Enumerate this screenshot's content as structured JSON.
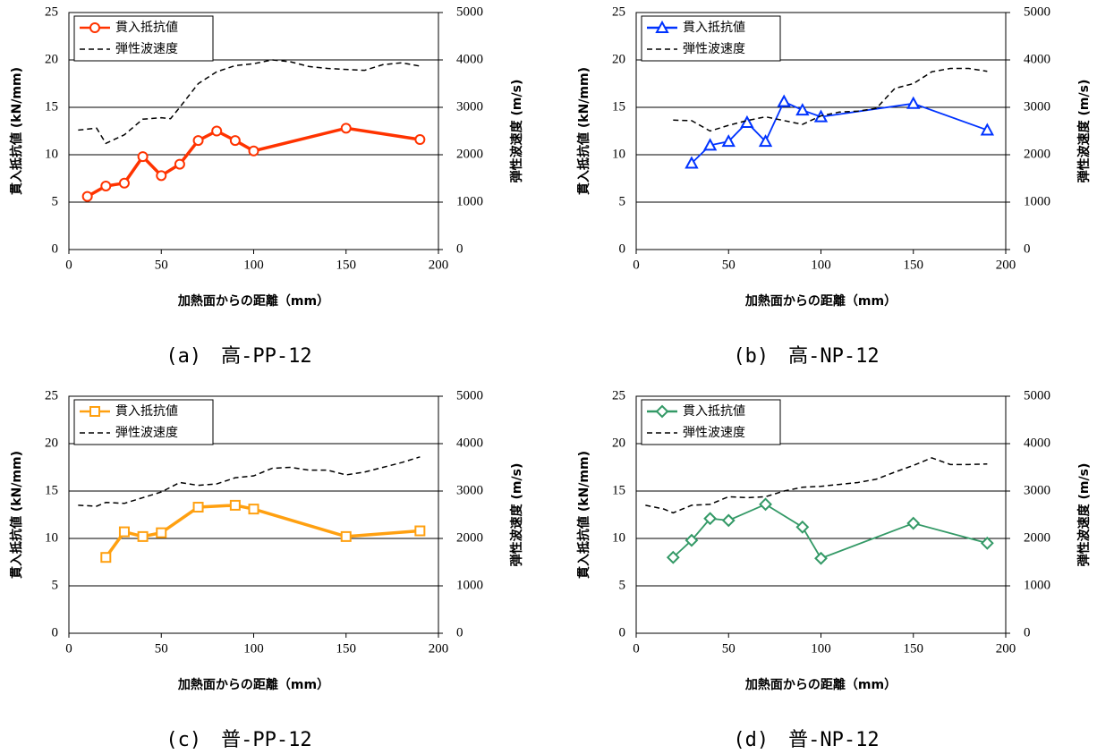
{
  "chart_data": [
    {
      "type": "line",
      "caption": "(a)　高-PP-12",
      "xlabel": "加熱面からの距離（mm）",
      "ylabel": "貫入抵抗値 (kN/mm)",
      "y2label": "弾性波速度 (m/s)",
      "xlim": [
        0,
        200
      ],
      "xticks": [
        0,
        50,
        100,
        150,
        200
      ],
      "ylim": [
        0,
        25
      ],
      "yticks": [
        0,
        5,
        10,
        15,
        20,
        25
      ],
      "y2lim": [
        0,
        5000
      ],
      "y2ticks": [
        0,
        1000,
        2000,
        3000,
        4000,
        5000
      ],
      "grid": true,
      "legend": "upper left",
      "series": [
        {
          "name": "貫入抵抗値",
          "color": "#ff3300",
          "marker": "circle",
          "x": [
            10,
            20,
            30,
            40,
            50,
            60,
            70,
            80,
            90,
            100,
            150,
            190
          ],
          "values": [
            5.6,
            6.7,
            7.0,
            9.8,
            7.8,
            9.0,
            11.5,
            12.5,
            11.5,
            10.4,
            12.8,
            11.6
          ]
        },
        {
          "name": "弾性波速度",
          "color": "#000000",
          "linestyle": "dashed",
          "axis": "y2",
          "x": [
            5,
            15,
            20,
            30,
            40,
            50,
            55,
            60,
            70,
            80,
            90,
            100,
            110,
            120,
            130,
            140,
            150,
            160,
            170,
            180,
            190
          ],
          "values": [
            2520,
            2560,
            2240,
            2420,
            2750,
            2780,
            2760,
            3000,
            3500,
            3750,
            3880,
            3920,
            4000,
            3960,
            3860,
            3820,
            3800,
            3780,
            3900,
            3940,
            3870
          ]
        }
      ]
    },
    {
      "type": "line",
      "caption": "(b)　高-NP-12",
      "xlabel": "加熱面からの距離（mm）",
      "ylabel": "貫入抵抗値 (kN/mm)",
      "y2label": "弾性波速度 (m/s)",
      "xlim": [
        0,
        200
      ],
      "xticks": [
        0,
        50,
        100,
        150,
        200
      ],
      "ylim": [
        0,
        25
      ],
      "yticks": [
        0,
        5,
        10,
        15,
        20,
        25
      ],
      "y2lim": [
        0,
        5000
      ],
      "y2ticks": [
        0,
        1000,
        2000,
        3000,
        4000,
        5000
      ],
      "grid": true,
      "legend": "upper left",
      "series": [
        {
          "name": "貫入抵抗値",
          "color": "#0033ff",
          "marker": "triangle",
          "x": [
            30,
            40,
            50,
            60,
            70,
            80,
            90,
            100,
            150,
            190
          ],
          "values": [
            9.1,
            11.0,
            11.4,
            13.4,
            11.4,
            15.6,
            14.7,
            14.0,
            15.4,
            12.6
          ]
        },
        {
          "name": "弾性波速度",
          "color": "#000000",
          "linestyle": "dashed",
          "axis": "y2",
          "x": [
            20,
            30,
            40,
            50,
            60,
            70,
            80,
            90,
            100,
            110,
            120,
            130,
            140,
            150,
            160,
            170,
            180,
            190
          ],
          "values": [
            2730,
            2720,
            2500,
            2620,
            2720,
            2800,
            2720,
            2640,
            2820,
            2900,
            2920,
            2980,
            3400,
            3500,
            3750,
            3820,
            3820,
            3760
          ]
        }
      ]
    },
    {
      "type": "line",
      "caption": "(c)　普-PP-12",
      "xlabel": "加熱面からの距離（mm）",
      "ylabel": "貫入抵抗値 (kN/mm)",
      "y2label": "弾性波速度 (m/s)",
      "xlim": [
        0,
        200
      ],
      "xticks": [
        0,
        50,
        100,
        150,
        200
      ],
      "ylim": [
        0,
        25
      ],
      "yticks": [
        0,
        5,
        10,
        15,
        20,
        25
      ],
      "y2lim": [
        0,
        5000
      ],
      "y2ticks": [
        0,
        1000,
        2000,
        3000,
        4000,
        5000
      ],
      "grid": true,
      "legend": "upper left",
      "series": [
        {
          "name": "貫入抵抗値",
          "color": "#ffa010",
          "marker": "square",
          "x": [
            20,
            30,
            40,
            50,
            70,
            90,
            100,
            150,
            190
          ],
          "values": [
            8.0,
            10.7,
            10.2,
            10.6,
            13.3,
            13.5,
            13.1,
            10.2,
            10.8
          ]
        },
        {
          "name": "弾性波速度",
          "color": "#000000",
          "linestyle": "dashed",
          "axis": "y2",
          "x": [
            5,
            15,
            20,
            30,
            40,
            50,
            60,
            70,
            80,
            90,
            100,
            110,
            120,
            130,
            140,
            150,
            160,
            170,
            180,
            190
          ],
          "values": [
            2700,
            2680,
            2760,
            2740,
            2860,
            2980,
            3180,
            3120,
            3150,
            3280,
            3320,
            3480,
            3500,
            3440,
            3440,
            3340,
            3400,
            3500,
            3600,
            3720
          ]
        }
      ]
    },
    {
      "type": "line",
      "caption": "(d)　普-NP-12",
      "xlabel": "加熱面からの距離（mm）",
      "ylabel": "貫入抵抗値 (kN/mm)",
      "y2label": "弾性波速度 (m/s)",
      "xlim": [
        0,
        200
      ],
      "xticks": [
        0,
        50,
        100,
        150,
        200
      ],
      "ylim": [
        0,
        25
      ],
      "yticks": [
        0,
        5,
        10,
        15,
        20,
        25
      ],
      "y2lim": [
        0,
        5000
      ],
      "y2ticks": [
        0,
        1000,
        2000,
        3000,
        4000,
        5000
      ],
      "grid": true,
      "legend": "upper left",
      "series": [
        {
          "name": "貫入抵抗値",
          "color": "#339966",
          "marker": "diamond",
          "x": [
            20,
            30,
            40,
            50,
            70,
            90,
            100,
            150,
            190
          ],
          "values": [
            8.0,
            9.8,
            12.1,
            11.9,
            13.6,
            11.2,
            7.9,
            11.6,
            9.5
          ]
        },
        {
          "name": "弾性波速度",
          "color": "#000000",
          "linestyle": "dashed",
          "axis": "y2",
          "x": [
            5,
            15,
            20,
            30,
            40,
            50,
            60,
            70,
            80,
            90,
            100,
            110,
            120,
            130,
            140,
            150,
            160,
            170,
            180,
            190
          ],
          "values": [
            2700,
            2620,
            2540,
            2700,
            2720,
            2880,
            2860,
            2880,
            3000,
            3080,
            3100,
            3140,
            3180,
            3250,
            3400,
            3540,
            3700,
            3560,
            3560,
            3570
          ]
        }
      ]
    }
  ]
}
